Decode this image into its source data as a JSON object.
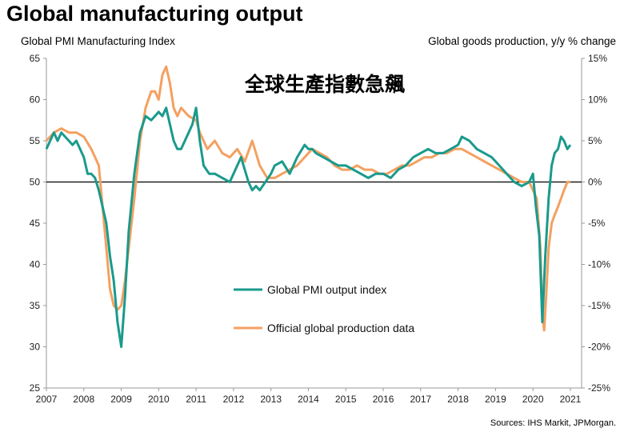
{
  "chart_data": {
    "type": "line",
    "title": "Global manufacturing output",
    "ylabel_left": "Global PMI Manufacturing  Index",
    "ylabel_right": "Global goods production, y/y % change",
    "annotation": "全球生產指數急飆",
    "source": "Sources: IHS Markit, JPMorgan.",
    "colors": {
      "pmi": "#1a9a8c",
      "official": "#f4a060",
      "zero_line": "#000000",
      "axis": "#999999"
    },
    "x_range": [
      2007,
      2021.3
    ],
    "ylim_left": [
      25,
      65
    ],
    "ylim_right": [
      -25,
      15
    ],
    "x_ticks": [
      "2007",
      "2008",
      "2009",
      "2010",
      "2011",
      "2012",
      "2013",
      "2014",
      "2015",
      "2016",
      "2017",
      "2018",
      "2019",
      "2020",
      "2021"
    ],
    "y_ticks_left": [
      "65",
      "60",
      "55",
      "50",
      "45",
      "40",
      "35",
      "30",
      "25"
    ],
    "y_ticks_right": [
      "15%",
      "10%",
      "5%",
      "0%",
      "-5%",
      "-10%",
      "-15%",
      "-20%",
      "-25%"
    ],
    "series": [
      {
        "name": "Global PMI output index",
        "axis": "left",
        "x": [
          2007.0,
          2007.1,
          2007.2,
          2007.3,
          2007.4,
          2007.5,
          2007.6,
          2007.7,
          2007.8,
          2007.9,
          2008.0,
          2008.1,
          2008.2,
          2008.3,
          2008.4,
          2008.5,
          2008.6,
          2008.7,
          2008.8,
          2008.9,
          2009.0,
          2009.1,
          2009.2,
          2009.35,
          2009.5,
          2009.65,
          2009.8,
          2009.9,
          2010.0,
          2010.1,
          2010.2,
          2010.3,
          2010.4,
          2010.5,
          2010.6,
          2010.7,
          2010.8,
          2010.9,
          2011.0,
          2011.1,
          2011.2,
          2011.35,
          2011.5,
          2011.7,
          2011.9,
          2012.0,
          2012.1,
          2012.2,
          2012.4,
          2012.5,
          2012.6,
          2012.7,
          2012.85,
          2013.0,
          2013.1,
          2013.3,
          2013.5,
          2013.7,
          2013.9,
          2014.0,
          2014.1,
          2014.2,
          2014.4,
          2014.6,
          2014.8,
          2015.0,
          2015.2,
          2015.4,
          2015.6,
          2015.8,
          2016.0,
          2016.2,
          2016.4,
          2016.6,
          2016.8,
          2017.0,
          2017.2,
          2017.4,
          2017.6,
          2017.8,
          2018.0,
          2018.1,
          2018.3,
          2018.5,
          2018.7,
          2018.9,
          2019.1,
          2019.3,
          2019.5,
          2019.7,
          2019.9,
          2020.0,
          2020.08,
          2020.17,
          2020.25,
          2020.33,
          2020.42,
          2020.5,
          2020.58,
          2020.67,
          2020.75,
          2020.83,
          2020.92,
          2021.0
        ],
        "values": [
          54,
          55,
          56,
          55,
          56,
          55.5,
          55,
          54.5,
          55,
          54,
          53,
          51,
          51,
          50.5,
          49,
          47,
          45,
          41,
          38,
          33,
          30,
          36,
          44,
          51,
          56,
          58,
          57.5,
          58,
          58.5,
          58,
          59,
          57,
          55,
          54,
          54,
          55,
          56,
          57,
          59,
          55,
          52,
          51,
          51,
          50.5,
          50,
          51,
          52,
          53,
          50,
          49,
          49.5,
          49,
          50,
          51,
          52,
          52.5,
          51,
          53,
          54.5,
          54,
          54,
          53.5,
          53,
          52.5,
          52,
          52,
          51.5,
          51,
          50.5,
          51,
          51,
          50.5,
          51.5,
          52,
          53,
          53.5,
          54,
          53.5,
          53.5,
          54,
          54.5,
          55.5,
          55,
          54,
          53.5,
          53,
          52,
          51,
          50,
          49.5,
          50,
          51,
          47,
          43.5,
          33,
          41,
          48,
          52,
          53.5,
          54,
          55.5,
          55,
          54,
          54.5
        ]
      },
      {
        "name": "Official global production data",
        "axis": "right",
        "x": [
          2007.0,
          2007.2,
          2007.4,
          2007.6,
          2007.8,
          2008.0,
          2008.2,
          2008.4,
          2008.5,
          2008.6,
          2008.7,
          2008.8,
          2008.9,
          2009.0,
          2009.1,
          2009.2,
          2009.35,
          2009.5,
          2009.65,
          2009.8,
          2009.9,
          2010.0,
          2010.1,
          2010.2,
          2010.3,
          2010.4,
          2010.5,
          2010.6,
          2010.8,
          2011.0,
          2011.1,
          2011.3,
          2011.5,
          2011.7,
          2011.9,
          2012.1,
          2012.3,
          2012.5,
          2012.7,
          2012.9,
          2013.1,
          2013.3,
          2013.5,
          2013.7,
          2013.9,
          2014.1,
          2014.3,
          2014.5,
          2014.7,
          2014.9,
          2015.1,
          2015.3,
          2015.5,
          2015.7,
          2015.9,
          2016.1,
          2016.3,
          2016.5,
          2016.7,
          2016.9,
          2017.1,
          2017.3,
          2017.5,
          2017.7,
          2017.9,
          2018.1,
          2018.3,
          2018.5,
          2018.7,
          2018.9,
          2019.1,
          2019.3,
          2019.5,
          2019.7,
          2019.9,
          2020.0,
          2020.1,
          2020.2,
          2020.25,
          2020.3,
          2020.35,
          2020.42,
          2020.5,
          2020.58,
          2020.67,
          2020.75,
          2020.83,
          2020.92,
          2021.0
        ],
        "values": [
          5,
          6,
          6.5,
          6,
          6,
          5.5,
          4,
          2,
          -3,
          -8,
          -13,
          -15,
          -15.5,
          -15,
          -12,
          -8,
          -2,
          5,
          9,
          11,
          11,
          10,
          13,
          14,
          12,
          9,
          8,
          9,
          8,
          7.5,
          6,
          4,
          5,
          3.5,
          3,
          4,
          2.5,
          5,
          2,
          0.5,
          0.5,
          1,
          1.5,
          2,
          3,
          4,
          3.5,
          3,
          2,
          1.5,
          1.5,
          2,
          1.5,
          1.5,
          1,
          1,
          1.5,
          2,
          2,
          2.5,
          3,
          3,
          3.5,
          3.5,
          4,
          4,
          3.5,
          3,
          2.5,
          2,
          1.5,
          1,
          0.5,
          0,
          0,
          -1,
          -2,
          -8,
          -16,
          -18,
          -14,
          -8,
          -5,
          -4,
          -3,
          -2,
          -1,
          0,
          0
        ]
      }
    ],
    "legend": [
      "Global PMI output index",
      "Official global production data"
    ]
  }
}
